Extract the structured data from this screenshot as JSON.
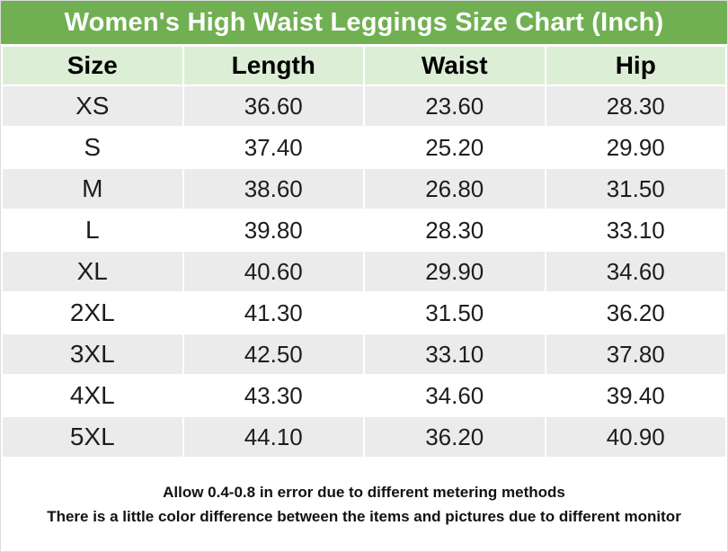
{
  "title": "Women's High Waist Leggings Size Chart (Inch)",
  "colors": {
    "title_bar_bg": "#70b052",
    "title_text": "#ffffff",
    "header_bg": "#ddeed6",
    "row_alt_bg": "#ebebeb",
    "row_bg": "#ffffff",
    "cell_text": "#1d1d1d",
    "footer_text": "#111111"
  },
  "chart_data": {
    "type": "table",
    "title": "Women's High Waist Leggings Size Chart (Inch)",
    "units": "Inch",
    "columns": [
      "Size",
      "Length",
      "Waist",
      "Hip"
    ],
    "rows": [
      [
        "XS",
        "36.60",
        "23.60",
        "28.30"
      ],
      [
        "S",
        "37.40",
        "25.20",
        "29.90"
      ],
      [
        "M",
        "38.60",
        "26.80",
        "31.50"
      ],
      [
        "L",
        "39.80",
        "28.30",
        "33.10"
      ],
      [
        "XL",
        "40.60",
        "29.90",
        "34.60"
      ],
      [
        "2XL",
        "41.30",
        "31.50",
        "36.20"
      ],
      [
        "3XL",
        "42.50",
        "33.10",
        "37.80"
      ],
      [
        "4XL",
        "43.30",
        "34.60",
        "39.40"
      ],
      [
        "5XL",
        "44.10",
        "36.20",
        "40.90"
      ]
    ],
    "layout": {
      "alternating_rows": true,
      "header_position": "top",
      "column_count": 4
    }
  },
  "footer": {
    "line1": "Allow 0.4-0.8 in error due to different metering methods",
    "line2": "There is a little color difference between the items and pictures due to different monitor"
  }
}
